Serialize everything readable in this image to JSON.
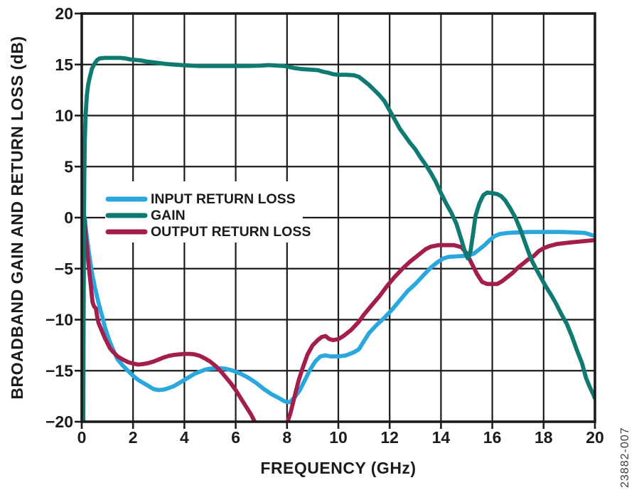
{
  "watermark": {
    "text": "23882-007"
  },
  "chart_data": {
    "type": "line",
    "title": "",
    "xlabel": "FREQUENCY (GHz)",
    "ylabel": "BROADBAND GAIN AND RETURN LOSS (dB)",
    "xlim": [
      0,
      20
    ],
    "ylim": [
      -20,
      20
    ],
    "x_ticks": [
      0,
      2,
      4,
      6,
      8,
      10,
      12,
      14,
      16,
      18,
      20
    ],
    "y_ticks": [
      20,
      15,
      10,
      5,
      0,
      -5,
      -10,
      -15,
      -20
    ],
    "grid": true,
    "legend_position": "inside-middle-left",
    "axis_color": "#1b1b1b",
    "z_order": [
      0,
      2,
      1
    ],
    "series": [
      {
        "name": "INPUT RETURN LOSS",
        "color": "#2aa7dd",
        "points": [
          [
            0.12,
            0
          ],
          [
            0.15,
            -0.9
          ],
          [
            0.2,
            -1.9
          ],
          [
            0.25,
            -2.9
          ],
          [
            0.3,
            -3.8
          ],
          [
            0.4,
            -5.4
          ],
          [
            0.5,
            -6.7
          ],
          [
            0.6,
            -7.8
          ],
          [
            0.7,
            -8.8
          ],
          [
            0.8,
            -9.7
          ],
          [
            0.9,
            -10.7
          ],
          [
            1.0,
            -11.5
          ],
          [
            1.1,
            -12.2
          ],
          [
            1.2,
            -12.8
          ],
          [
            1.4,
            -13.9
          ],
          [
            1.6,
            -14.5
          ],
          [
            1.8,
            -15.0
          ],
          [
            2.0,
            -15.5
          ],
          [
            2.2,
            -15.9
          ],
          [
            2.4,
            -16.2
          ],
          [
            2.6,
            -16.5
          ],
          [
            2.8,
            -16.8
          ],
          [
            3.0,
            -16.9
          ],
          [
            3.2,
            -16.85
          ],
          [
            3.4,
            -16.7
          ],
          [
            3.6,
            -16.5
          ],
          [
            3.8,
            -16.2
          ],
          [
            4.0,
            -15.9
          ],
          [
            4.2,
            -15.6
          ],
          [
            4.4,
            -15.3
          ],
          [
            4.6,
            -15.1
          ],
          [
            4.8,
            -14.9
          ],
          [
            5.0,
            -14.8
          ],
          [
            5.3,
            -14.75
          ],
          [
            5.6,
            -14.8
          ],
          [
            5.9,
            -15.0
          ],
          [
            6.2,
            -15.3
          ],
          [
            6.5,
            -15.7
          ],
          [
            6.8,
            -16.2
          ],
          [
            7.1,
            -16.8
          ],
          [
            7.4,
            -17.3
          ],
          [
            7.7,
            -17.7
          ],
          [
            7.9,
            -18.0
          ],
          [
            8.1,
            -18.1
          ],
          [
            8.3,
            -17.6
          ],
          [
            8.5,
            -16.9
          ],
          [
            8.7,
            -15.9
          ],
          [
            8.9,
            -14.9
          ],
          [
            9.1,
            -14.1
          ],
          [
            9.3,
            -13.6
          ],
          [
            9.5,
            -13.5
          ],
          [
            9.7,
            -13.6
          ],
          [
            10.0,
            -13.6
          ],
          [
            10.3,
            -13.5
          ],
          [
            10.6,
            -13.2
          ],
          [
            10.8,
            -12.9
          ],
          [
            11.0,
            -12.1
          ],
          [
            11.2,
            -11.3
          ],
          [
            11.5,
            -10.5
          ],
          [
            11.8,
            -9.8
          ],
          [
            12.1,
            -9.0
          ],
          [
            12.4,
            -8.1
          ],
          [
            12.7,
            -7.2
          ],
          [
            13.0,
            -6.5
          ],
          [
            13.3,
            -5.7
          ],
          [
            13.6,
            -4.9
          ],
          [
            13.9,
            -4.3
          ],
          [
            14.1,
            -4.0
          ],
          [
            14.3,
            -3.85
          ],
          [
            14.6,
            -3.8
          ],
          [
            14.9,
            -3.75
          ],
          [
            15.1,
            -3.7
          ],
          [
            15.3,
            -3.5
          ],
          [
            15.5,
            -3.1
          ],
          [
            15.7,
            -2.7
          ],
          [
            15.9,
            -2.2
          ],
          [
            16.1,
            -1.8
          ],
          [
            16.3,
            -1.6
          ],
          [
            16.6,
            -1.5
          ],
          [
            17.0,
            -1.45
          ],
          [
            17.5,
            -1.4
          ],
          [
            18.0,
            -1.4
          ],
          [
            18.6,
            -1.4
          ],
          [
            19.2,
            -1.45
          ],
          [
            19.6,
            -1.5
          ],
          [
            20.0,
            -1.8
          ]
        ]
      },
      {
        "name": "GAIN",
        "color": "#0f7a72",
        "points": [
          [
            0.06,
            -20
          ],
          [
            0.07,
            -12
          ],
          [
            0.08,
            -5
          ],
          [
            0.09,
            0
          ],
          [
            0.1,
            4
          ],
          [
            0.12,
            7.5
          ],
          [
            0.15,
            10
          ],
          [
            0.2,
            12
          ],
          [
            0.25,
            13
          ],
          [
            0.3,
            13.6
          ],
          [
            0.4,
            14.6
          ],
          [
            0.5,
            15.1
          ],
          [
            0.6,
            15.45
          ],
          [
            0.7,
            15.6
          ],
          [
            0.9,
            15.65
          ],
          [
            1.2,
            15.65
          ],
          [
            1.5,
            15.65
          ],
          [
            1.7,
            15.6
          ],
          [
            1.9,
            15.5
          ],
          [
            2.1,
            15.45
          ],
          [
            2.3,
            15.4
          ],
          [
            2.5,
            15.3
          ],
          [
            2.7,
            15.25
          ],
          [
            3.0,
            15.15
          ],
          [
            3.3,
            15.05
          ],
          [
            3.6,
            15.0
          ],
          [
            3.9,
            14.95
          ],
          [
            4.2,
            14.9
          ],
          [
            4.6,
            14.85
          ],
          [
            5.0,
            14.85
          ],
          [
            5.5,
            14.85
          ],
          [
            6.0,
            14.85
          ],
          [
            6.5,
            14.85
          ],
          [
            7.0,
            14.9
          ],
          [
            7.3,
            14.95
          ],
          [
            7.6,
            14.9
          ],
          [
            7.9,
            14.85
          ],
          [
            8.1,
            14.75
          ],
          [
            8.3,
            14.65
          ],
          [
            8.6,
            14.55
          ],
          [
            8.9,
            14.5
          ],
          [
            9.2,
            14.45
          ],
          [
            9.4,
            14.3
          ],
          [
            9.6,
            14.2
          ],
          [
            9.8,
            14.05
          ],
          [
            10.0,
            14.0
          ],
          [
            10.3,
            14.0
          ],
          [
            10.6,
            13.95
          ],
          [
            10.8,
            13.8
          ],
          [
            11.0,
            13.4
          ],
          [
            11.2,
            13.0
          ],
          [
            11.4,
            12.5
          ],
          [
            11.6,
            12.0
          ],
          [
            11.8,
            11.4
          ],
          [
            12.0,
            10.5
          ],
          [
            12.2,
            9.6
          ],
          [
            12.4,
            8.7
          ],
          [
            12.6,
            8.0
          ],
          [
            12.8,
            7.3
          ],
          [
            13.0,
            6.7
          ],
          [
            13.2,
            5.9
          ],
          [
            13.4,
            5.2
          ],
          [
            13.6,
            4.4
          ],
          [
            13.8,
            3.5
          ],
          [
            14.0,
            2.4
          ],
          [
            14.2,
            1.4
          ],
          [
            14.4,
            0.5
          ],
          [
            14.6,
            -0.6
          ],
          [
            14.8,
            -2.2
          ],
          [
            14.95,
            -3.5
          ],
          [
            15.05,
            -4.0
          ],
          [
            15.15,
            -3.3
          ],
          [
            15.25,
            -1.6
          ],
          [
            15.35,
            0.2
          ],
          [
            15.5,
            1.4
          ],
          [
            15.65,
            2.2
          ],
          [
            15.8,
            2.45
          ],
          [
            16.0,
            2.4
          ],
          [
            16.2,
            2.3
          ],
          [
            16.35,
            2.1
          ],
          [
            16.5,
            1.7
          ],
          [
            16.7,
            0.9
          ],
          [
            16.9,
            0.0
          ],
          [
            17.1,
            -1.2
          ],
          [
            17.3,
            -2.6
          ],
          [
            17.5,
            -4.0
          ],
          [
            17.7,
            -5.0
          ],
          [
            17.9,
            -5.9
          ],
          [
            18.1,
            -6.8
          ],
          [
            18.3,
            -7.6
          ],
          [
            18.5,
            -8.5
          ],
          [
            18.7,
            -9.5
          ],
          [
            18.9,
            -10.4
          ],
          [
            19.1,
            -11.6
          ],
          [
            19.3,
            -13.0
          ],
          [
            19.5,
            -14.3
          ],
          [
            19.65,
            -15.7
          ],
          [
            19.8,
            -16.6
          ],
          [
            19.95,
            -17.4
          ],
          [
            20.0,
            -17.7
          ]
        ]
      },
      {
        "name": "OUTPUT RETURN LOSS",
        "color": "#a31d4d",
        "points": [
          [
            0.1,
            0
          ],
          [
            0.13,
            -0.9
          ],
          [
            0.17,
            -2.1
          ],
          [
            0.22,
            -3.4
          ],
          [
            0.27,
            -4.7
          ],
          [
            0.32,
            -5.9
          ],
          [
            0.38,
            -7.3
          ],
          [
            0.42,
            -8.3
          ],
          [
            0.48,
            -8.7
          ],
          [
            0.55,
            -8.9
          ],
          [
            0.6,
            -9.7
          ],
          [
            0.65,
            -10.3
          ],
          [
            0.7,
            -10.6
          ],
          [
            0.8,
            -11.2
          ],
          [
            0.9,
            -11.8
          ],
          [
            1.0,
            -12.3
          ],
          [
            1.1,
            -12.8
          ],
          [
            1.2,
            -13.1
          ],
          [
            1.4,
            -13.6
          ],
          [
            1.6,
            -13.9
          ],
          [
            1.8,
            -14.15
          ],
          [
            2.0,
            -14.3
          ],
          [
            2.2,
            -14.4
          ],
          [
            2.4,
            -14.35
          ],
          [
            2.6,
            -14.25
          ],
          [
            2.8,
            -14.1
          ],
          [
            3.0,
            -13.9
          ],
          [
            3.2,
            -13.7
          ],
          [
            3.4,
            -13.55
          ],
          [
            3.6,
            -13.45
          ],
          [
            3.8,
            -13.4
          ],
          [
            4.0,
            -13.35
          ],
          [
            4.2,
            -13.35
          ],
          [
            4.4,
            -13.4
          ],
          [
            4.6,
            -13.55
          ],
          [
            4.8,
            -13.8
          ],
          [
            5.0,
            -14.1
          ],
          [
            5.2,
            -14.5
          ],
          [
            5.4,
            -15.0
          ],
          [
            5.6,
            -15.6
          ],
          [
            5.8,
            -16.2
          ],
          [
            6.0,
            -16.9
          ],
          [
            6.2,
            -17.7
          ],
          [
            6.4,
            -18.5
          ],
          [
            6.6,
            -19.3
          ],
          [
            6.8,
            -20.3
          ],
          [
            7.0,
            -21.5
          ],
          [
            7.4,
            -22.5
          ],
          [
            7.8,
            -21.3
          ],
          [
            8.0,
            -20.2
          ],
          [
            8.15,
            -19.0
          ],
          [
            8.3,
            -17.5
          ],
          [
            8.45,
            -16.0
          ],
          [
            8.6,
            -14.8
          ],
          [
            8.8,
            -13.4
          ],
          [
            9.0,
            -12.5
          ],
          [
            9.2,
            -12.0
          ],
          [
            9.35,
            -11.7
          ],
          [
            9.5,
            -11.6
          ],
          [
            9.65,
            -11.9
          ],
          [
            9.8,
            -12.0
          ],
          [
            10.0,
            -11.9
          ],
          [
            10.2,
            -11.6
          ],
          [
            10.5,
            -11.0
          ],
          [
            10.8,
            -10.2
          ],
          [
            11.0,
            -9.5
          ],
          [
            11.3,
            -8.6
          ],
          [
            11.6,
            -7.7
          ],
          [
            11.9,
            -6.7
          ],
          [
            12.2,
            -5.8
          ],
          [
            12.5,
            -5.0
          ],
          [
            12.8,
            -4.3
          ],
          [
            13.1,
            -3.7
          ],
          [
            13.4,
            -3.1
          ],
          [
            13.6,
            -2.85
          ],
          [
            13.9,
            -2.7
          ],
          [
            14.2,
            -2.7
          ],
          [
            14.5,
            -2.7
          ],
          [
            14.8,
            -2.9
          ],
          [
            15.0,
            -3.5
          ],
          [
            15.2,
            -4.5
          ],
          [
            15.4,
            -5.5
          ],
          [
            15.6,
            -6.3
          ],
          [
            15.8,
            -6.5
          ],
          [
            16.0,
            -6.5
          ],
          [
            16.2,
            -6.5
          ],
          [
            16.4,
            -6.2
          ],
          [
            16.6,
            -5.8
          ],
          [
            16.8,
            -5.4
          ],
          [
            17.0,
            -4.9
          ],
          [
            17.2,
            -4.5
          ],
          [
            17.4,
            -4.1
          ],
          [
            17.6,
            -3.8
          ],
          [
            17.8,
            -3.3
          ],
          [
            18.0,
            -3.0
          ],
          [
            18.2,
            -2.8
          ],
          [
            18.5,
            -2.6
          ],
          [
            18.8,
            -2.5
          ],
          [
            19.2,
            -2.4
          ],
          [
            19.6,
            -2.3
          ],
          [
            20.0,
            -2.2
          ]
        ]
      }
    ]
  }
}
